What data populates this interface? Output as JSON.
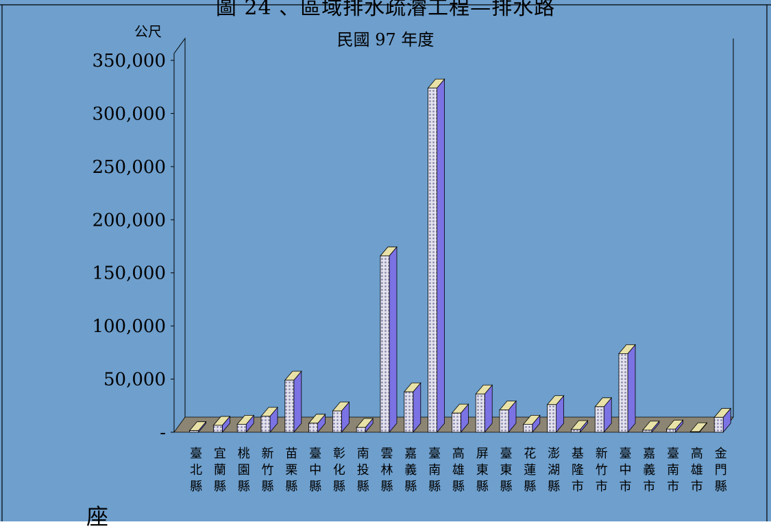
{
  "chart_data": {
    "type": "bar",
    "title": "圖 24 、區域排水疏濬工程—排水路",
    "subtitle": "民國 97 年度",
    "ylabel": "公尺",
    "ylim": [
      0,
      350000
    ],
    "yticks": [
      0,
      50000,
      100000,
      150000,
      200000,
      250000,
      300000,
      350000
    ],
    "ytick_labels": [
      "-",
      "50,000",
      "100,000",
      "150,000",
      "200,000",
      "250,000",
      "300,000",
      "350,000"
    ],
    "categories": [
      "臺北縣",
      "宜蘭縣",
      "桃園縣",
      "新竹縣",
      "苗栗縣",
      "臺中縣",
      "彰化縣",
      "南投縣",
      "雲林縣",
      "嘉義縣",
      "臺南縣",
      "高雄縣",
      "屏東縣",
      "臺東縣",
      "花蓮縣",
      "澎湖縣",
      "基隆市",
      "新竹市",
      "臺中市",
      "嘉義市",
      "臺南市",
      "高雄市",
      "金門縣"
    ],
    "values": [
      1500,
      6500,
      7500,
      15000,
      49000,
      8500,
      20000,
      4500,
      166000,
      38000,
      324000,
      18000,
      36000,
      21000,
      7500,
      26000,
      2500,
      24000,
      74000,
      2000,
      3000,
      500,
      14000
    ],
    "grid": false,
    "legend": "none",
    "colors": {
      "background": "#6e9fcd",
      "bar_front": "#b4b8d4",
      "bar_side": "#7b72e4",
      "bar_top": "#e8e2a8",
      "floor": "#8c8574"
    }
  },
  "page": {
    "footer_text": "座"
  }
}
